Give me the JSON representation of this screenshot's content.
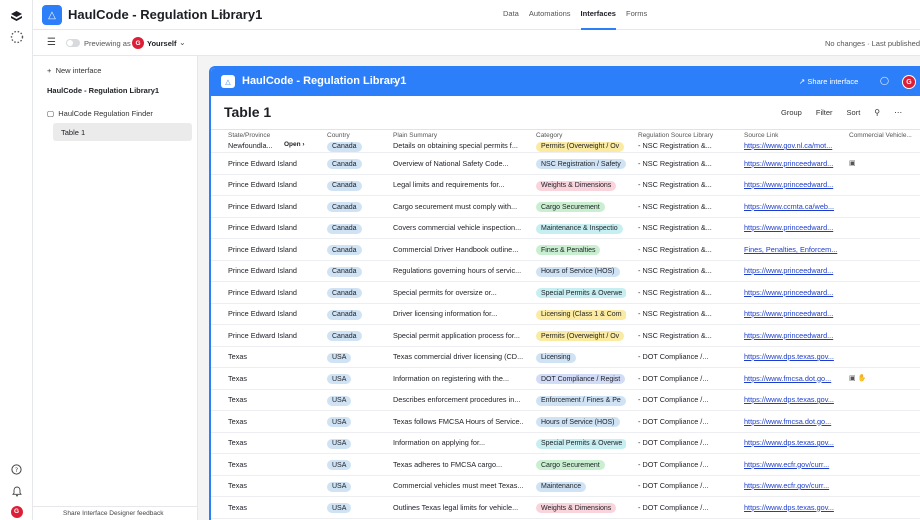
{
  "app": {
    "title": "HaulCode - Regulation Library1",
    "nav": [
      "Data",
      "Automations",
      "Interfaces",
      "Forms"
    ],
    "active_nav": "Interfaces"
  },
  "subbar": {
    "preview_label": "Previewing as",
    "user": "Yourself",
    "avatar_initial": "G",
    "status": "No changes · Last published"
  },
  "sidebar": {
    "new_interface": "New interface",
    "title": "HaulCode - Regulation Library1",
    "page": "HaulCode Regulation Finder",
    "table_item": "Table 1",
    "footer": "Share Interface Designer feedback"
  },
  "interface": {
    "title": "HaulCode - Regulation Library1",
    "share": "Share interface",
    "avatar_initial": "G",
    "table_title": "Table 1",
    "tools": [
      "Group",
      "Filter",
      "Sort"
    ]
  },
  "table": {
    "columns": [
      "State/Province",
      "Country",
      "Plain Summary",
      "Category",
      "Regulation Source Library",
      "Source Link",
      "Commercial Vehicle..."
    ],
    "first_row": {
      "state": "Newfoundla...",
      "open": "Open",
      "country": "Canada",
      "summary": "Details on obtaining special permits f...",
      "category": "Permits (Overweight / Ov",
      "category_color": "#fbeaa1",
      "reg": "- NSC Registration &...",
      "link": "https://www.gov.nl.ca/mot..."
    },
    "rows": [
      {
        "state": "Prince Edward Island",
        "country": "Canada",
        "summary": "Overview of National Safety Code...",
        "category": "NSC Registration / Safety",
        "category_color": "#cfe3f5",
        "reg": "- NSC Registration &...",
        "link": "https://www.princeedward...",
        "att": "▣"
      },
      {
        "state": "Prince Edward Island",
        "country": "Canada",
        "summary": "Legal limits and requirements for...",
        "category": "Weights & Dimensions",
        "category_color": "#f9d4dc",
        "reg": "- NSC Registration &...",
        "link": "https://www.princeedward...",
        "att": ""
      },
      {
        "state": "Prince Edward Island",
        "country": "Canada",
        "summary": "Cargo securement must comply with...",
        "category": "Cargo Securement",
        "category_color": "#c9efd0",
        "reg": "- NSC Registration &...",
        "link": "https://www.ccmta.ca/web...",
        "att": ""
      },
      {
        "state": "Prince Edward Island",
        "country": "Canada",
        "summary": "Covers commercial vehicle inspection...",
        "category": "Maintenance & Inspectio",
        "category_color": "#c7eef1",
        "reg": "- NSC Registration &...",
        "link": "https://www.princeedward...",
        "att": ""
      },
      {
        "state": "Prince Edward Island",
        "country": "Canada",
        "summary": "Commercial Driver Handbook outline...",
        "category": "Fines & Penalties",
        "category_color": "#c9efd0",
        "reg": "- NSC Registration &...",
        "link": "Fines, Penalties, Enforcem...",
        "att": ""
      },
      {
        "state": "Prince Edward Island",
        "country": "Canada",
        "summary": "Regulations governing hours of servic...",
        "category": "Hours of Service (HOS)",
        "category_color": "#cfe3f5",
        "reg": "- NSC Registration &...",
        "link": "https://www.princeedward...",
        "att": ""
      },
      {
        "state": "Prince Edward Island",
        "country": "Canada",
        "summary": "Special permits for oversize or...",
        "category": "Special Permits & Overwe",
        "category_color": "#c7eef1",
        "reg": "- NSC Registration &...",
        "link": "https://www.princeedward...",
        "att": ""
      },
      {
        "state": "Prince Edward Island",
        "country": "Canada",
        "summary": "Driver licensing information for...",
        "category": "Licensing (Class 1 & Com",
        "category_color": "#fbeaa1",
        "reg": "- NSC Registration &...",
        "link": "https://www.princeedward...",
        "att": ""
      },
      {
        "state": "Prince Edward Island",
        "country": "Canada",
        "summary": "Special permit application process for...",
        "category": "Permits (Overweight / Ov",
        "category_color": "#fbeaa1",
        "reg": "- NSC Registration &...",
        "link": "https://www.princeedward...",
        "att": ""
      },
      {
        "state": "Texas",
        "country": "USA",
        "summary": "Texas commercial driver licensing (CD...",
        "category": "Licensing",
        "category_color": "#cfe3f5",
        "reg": "- DOT Compliance /...",
        "link": "https://www.dps.texas.gov...",
        "att": ""
      },
      {
        "state": "Texas",
        "country": "USA",
        "summary": "Information on registering with the...",
        "category": "DOT Compliance / Regist",
        "category_color": "#d3dcf7",
        "reg": "- DOT Compliance /...",
        "link": "https://www.fmcsa.dot.go...",
        "att": "▣ ✋"
      },
      {
        "state": "Texas",
        "country": "USA",
        "summary": "Describes enforcement procedures in...",
        "category": "Enforcement / Fines & Pe",
        "category_color": "#cfe3f5",
        "reg": "- DOT Compliance /...",
        "link": "https://www.dps.texas.gov...",
        "att": ""
      },
      {
        "state": "Texas",
        "country": "USA",
        "summary": "Texas follows FMCSA Hours of Service...",
        "category": "Hours of Service (HOS)",
        "category_color": "#cfe3f5",
        "reg": "- DOT Compliance /...",
        "link": "https://www.fmcsa.dot.go...",
        "att": ""
      },
      {
        "state": "Texas",
        "country": "USA",
        "summary": "Information on applying for...",
        "category": "Special Permits & Overwe",
        "category_color": "#c7eef1",
        "reg": "- DOT Compliance /...",
        "link": "https://www.dps.texas.gov...",
        "att": ""
      },
      {
        "state": "Texas",
        "country": "USA",
        "summary": "Texas adheres to FMCSA cargo...",
        "category": "Cargo Securement",
        "category_color": "#c9efd0",
        "reg": "- DOT Compliance /...",
        "link": "https://www.ecfr.gov/curr...",
        "att": ""
      },
      {
        "state": "Texas",
        "country": "USA",
        "summary": "Commercial vehicles must meet Texas...",
        "category": "Maintenance",
        "category_color": "#cfe3f5",
        "reg": "- DOT Compliance /...",
        "link": "https://www.ecfr.gov/curr...",
        "att": ""
      },
      {
        "state": "Texas",
        "country": "USA",
        "summary": "Outlines Texas legal limits for vehicle...",
        "category": "Weights & Dimensions",
        "category_color": "#f9d4dc",
        "reg": "- DOT Compliance /...",
        "link": "https://www.dps.texas.gov...",
        "att": ""
      }
    ]
  }
}
